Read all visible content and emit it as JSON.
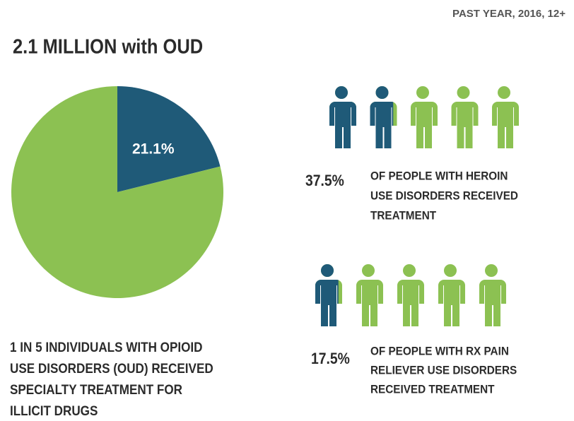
{
  "header": {
    "note": "PAST YEAR, 2016, 12+",
    "title": "2.1 MILLION with OUD"
  },
  "chart_data": [
    {
      "type": "pie",
      "values": [
        21.1,
        78.9
      ],
      "value_labels": [
        "21.1%",
        null
      ],
      "colors": [
        "#1f5a78",
        "#8cc152"
      ],
      "caption": [
        "1 IN 5 INDIVIDUALS WITH OPIOID",
        "USE DISORDERS (OUD) RECEIVED",
        "SPECIALTY TREATMENT FOR",
        "ILLICIT DRUGS"
      ]
    },
    {
      "type": "pictograph",
      "value": 37.5,
      "value_label": "37.5%",
      "vlim": [
        0,
        100
      ],
      "icons": 5,
      "colors": [
        "#1f5a78",
        "#8cc152"
      ],
      "caption": [
        "OF PEOPLE WITH HEROIN",
        "USE DISORDERS RECEIVED",
        "TREATMENT"
      ]
    },
    {
      "type": "pictograph",
      "value": 17.5,
      "value_label": "17.5%",
      "vlim": [
        0,
        100
      ],
      "icons": 5,
      "colors": [
        "#1f5a78",
        "#8cc152"
      ],
      "caption": [
        "OF PEOPLE WITH RX PAIN",
        "RELIEVER USE DISORDERS",
        "RECEIVED TREATMENT"
      ]
    }
  ]
}
